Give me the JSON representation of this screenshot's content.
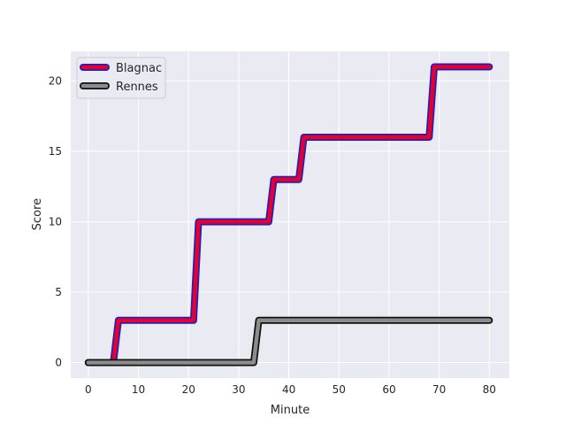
{
  "chart_data": {
    "type": "line",
    "title": "",
    "xlabel": "Minute",
    "ylabel": "Score",
    "xlim": [
      -3.5,
      84
    ],
    "ylim": [
      -1.1,
      22.1
    ],
    "xticks": [
      0,
      10,
      20,
      30,
      40,
      50,
      60,
      70,
      80
    ],
    "yticks": [
      0,
      5,
      10,
      15,
      20
    ],
    "grid": true,
    "legend_position": "top-left",
    "series": [
      {
        "name": "Blagnac",
        "color": "#e8002a",
        "edge_color": "#2020c0",
        "x": [
          0,
          5,
          6,
          21,
          22,
          36,
          37,
          42,
          43,
          68,
          69,
          80
        ],
        "y": [
          0,
          0,
          3,
          3,
          10,
          10,
          13,
          13,
          16,
          16,
          21,
          21
        ]
      },
      {
        "name": "Rennes",
        "color": "#8c8c8c",
        "edge_color": "#111111",
        "x": [
          0,
          33,
          34,
          80
        ],
        "y": [
          0,
          0,
          3,
          3
        ]
      }
    ]
  }
}
